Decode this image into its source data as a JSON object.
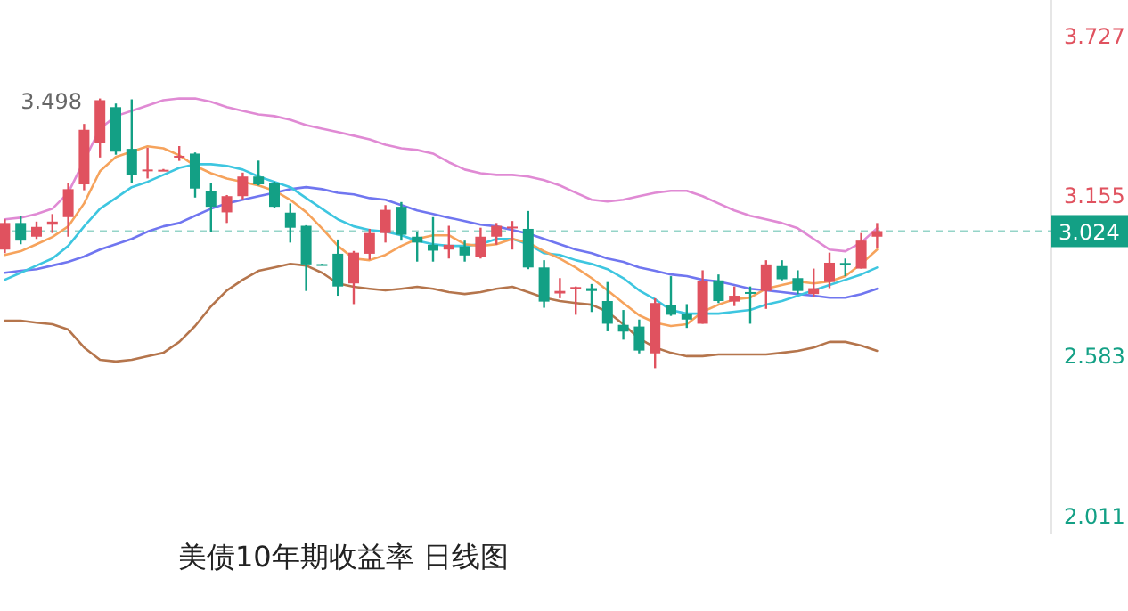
{
  "chart_data": {
    "type": "candlestick",
    "title": "美债10年期收益率 日线图",
    "categories": [
      null,
      null,
      null,
      null,
      null,
      null,
      null,
      null,
      null,
      null,
      null,
      null,
      null,
      null,
      null,
      null,
      null,
      null,
      null,
      null,
      null,
      null,
      null,
      null,
      null,
      null,
      null,
      null,
      null,
      null,
      null,
      null,
      null,
      null,
      null,
      null,
      null,
      null,
      null,
      null,
      null,
      null,
      null,
      null,
      null,
      null,
      null,
      null,
      null,
      null,
      null,
      null,
      null,
      null,
      null,
      null
    ],
    "ohlc": [
      [
        2.958,
        3.066,
        2.945,
        3.053
      ],
      [
        3.053,
        3.079,
        2.977,
        2.99
      ],
      [
        3.004,
        3.058,
        2.996,
        3.039
      ],
      [
        3.047,
        3.085,
        3.017,
        3.058
      ],
      [
        3.074,
        3.195,
        3.004,
        3.174
      ],
      [
        3.191,
        3.407,
        3.17,
        3.386
      ],
      [
        3.339,
        3.498,
        3.287,
        3.492
      ],
      [
        3.467,
        3.48,
        3.297,
        3.308
      ],
      [
        3.318,
        3.495,
        3.195,
        3.223
      ],
      [
        3.24,
        3.322,
        3.212,
        3.244
      ],
      [
        3.243,
        3.246,
        3.24,
        3.243
      ],
      [
        3.289,
        3.328,
        3.275,
        3.293
      ],
      [
        3.301,
        3.305,
        3.144,
        3.176
      ],
      [
        3.166,
        3.195,
        3.022,
        3.111
      ],
      [
        3.091,
        3.153,
        3.053,
        3.149
      ],
      [
        3.149,
        3.233,
        3.138,
        3.219
      ],
      [
        3.219,
        3.276,
        3.187,
        3.191
      ],
      [
        3.195,
        3.201,
        3.106,
        3.111
      ],
      [
        3.09,
        3.123,
        2.983,
        3.036
      ],
      [
        3.043,
        3.045,
        2.81,
        2.905
      ],
      [
        2.906,
        2.907,
        2.903,
        2.904
      ],
      [
        2.943,
        2.994,
        2.793,
        2.826
      ],
      [
        2.837,
        2.953,
        2.763,
        2.947
      ],
      [
        2.943,
        3.032,
        2.922,
        3.017
      ],
      [
        3.017,
        3.117,
        2.983,
        3.1
      ],
      [
        3.111,
        3.128,
        2.99,
        3.011
      ],
      [
        3.004,
        3.022,
        2.915,
        2.983
      ],
      [
        2.975,
        3.074,
        2.915,
        2.954
      ],
      [
        2.958,
        3.043,
        2.926,
        2.975
      ],
      [
        2.969,
        2.99,
        2.915,
        2.937
      ],
      [
        2.932,
        3.036,
        2.926,
        3.004
      ],
      [
        3.004,
        3.053,
        2.975,
        3.043
      ],
      [
        3.034,
        3.06,
        2.958,
        3.04
      ],
      [
        3.032,
        3.096,
        2.888,
        2.894
      ],
      [
        2.894,
        2.92,
        2.75,
        2.772
      ],
      [
        2.801,
        2.856,
        2.784,
        2.81
      ],
      [
        2.821,
        2.826,
        2.725,
        2.824
      ],
      [
        2.82,
        2.835,
        2.735,
        2.81
      ],
      [
        2.774,
        2.842,
        2.666,
        2.693
      ],
      [
        2.689,
        2.742,
        2.636,
        2.665
      ],
      [
        2.683,
        2.708,
        2.587,
        2.597
      ],
      [
        2.587,
        2.784,
        2.534,
        2.767
      ],
      [
        2.761,
        2.863,
        2.721,
        2.725
      ],
      [
        2.729,
        2.763,
        2.678,
        2.708
      ],
      [
        2.693,
        2.884,
        2.693,
        2.845
      ],
      [
        2.848,
        2.869,
        2.767,
        2.774
      ],
      [
        2.772,
        2.826,
        2.756,
        2.793
      ],
      [
        2.806,
        2.826,
        2.693,
        2.803
      ],
      [
        2.81,
        2.92,
        2.746,
        2.905
      ],
      [
        2.899,
        2.92,
        2.848,
        2.852
      ],
      [
        2.856,
        2.884,
        2.799,
        2.81
      ],
      [
        2.799,
        2.89,
        2.788,
        2.82
      ],
      [
        2.842,
        2.947,
        2.82,
        2.911
      ],
      [
        2.91,
        2.926,
        2.863,
        2.906
      ],
      [
        2.89,
        3.017,
        2.89,
        2.99
      ],
      [
        3.004,
        3.053,
        2.962,
        3.024
      ]
    ],
    "series": [
      {
        "type": "line",
        "color": "#e08ad4",
        "values": [
          3.066,
          3.072,
          3.085,
          3.104,
          3.161,
          3.276,
          3.39,
          3.435,
          3.454,
          3.473,
          3.492,
          3.498,
          3.498,
          3.486,
          3.467,
          3.454,
          3.441,
          3.435,
          3.422,
          3.403,
          3.39,
          3.378,
          3.365,
          3.352,
          3.333,
          3.32,
          3.314,
          3.301,
          3.27,
          3.244,
          3.231,
          3.225,
          3.225,
          3.219,
          3.206,
          3.187,
          3.161,
          3.136,
          3.13,
          3.136,
          3.149,
          3.161,
          3.168,
          3.168,
          3.149,
          3.123,
          3.098,
          3.079,
          3.066,
          3.053,
          3.034,
          2.996,
          2.958,
          2.952,
          2.983,
          3.034
        ]
      },
      {
        "type": "line",
        "color": "#b5754c",
        "values": [
          2.704,
          2.704,
          2.697,
          2.691,
          2.672,
          2.608,
          2.564,
          2.558,
          2.564,
          2.577,
          2.589,
          2.628,
          2.685,
          2.755,
          2.812,
          2.85,
          2.882,
          2.894,
          2.907,
          2.901,
          2.875,
          2.837,
          2.825,
          2.818,
          2.812,
          2.818,
          2.825,
          2.818,
          2.806,
          2.799,
          2.806,
          2.818,
          2.825,
          2.806,
          2.786,
          2.774,
          2.767,
          2.761,
          2.736,
          2.691,
          2.64,
          2.608,
          2.589,
          2.577,
          2.577,
          2.583,
          2.583,
          2.583,
          2.583,
          2.589,
          2.596,
          2.608,
          2.628,
          2.628,
          2.615,
          2.596
        ]
      },
      {
        "type": "line",
        "color": "#7076f0",
        "values": [
          2.875,
          2.882,
          2.888,
          2.901,
          2.914,
          2.933,
          2.958,
          2.977,
          2.996,
          3.022,
          3.041,
          3.053,
          3.079,
          3.104,
          3.123,
          3.136,
          3.149,
          3.161,
          3.174,
          3.181,
          3.174,
          3.161,
          3.155,
          3.142,
          3.136,
          3.117,
          3.098,
          3.085,
          3.072,
          3.06,
          3.047,
          3.041,
          3.028,
          3.015,
          2.996,
          2.977,
          2.958,
          2.945,
          2.926,
          2.914,
          2.894,
          2.882,
          2.869,
          2.863,
          2.85,
          2.844,
          2.831,
          2.818,
          2.812,
          2.806,
          2.799,
          2.793,
          2.786,
          2.786,
          2.799,
          2.818
        ]
      },
      {
        "type": "line",
        "color": "#3ec6e0",
        "values": [
          2.85,
          2.875,
          2.901,
          2.926,
          2.971,
          3.041,
          3.104,
          3.142,
          3.181,
          3.2,
          3.225,
          3.25,
          3.263,
          3.263,
          3.257,
          3.244,
          3.219,
          3.2,
          3.181,
          3.142,
          3.104,
          3.066,
          3.041,
          3.028,
          3.022,
          3.009,
          2.99,
          2.977,
          2.971,
          2.971,
          2.977,
          2.996,
          2.996,
          2.977,
          2.945,
          2.939,
          2.92,
          2.907,
          2.888,
          2.856,
          2.812,
          2.78,
          2.742,
          2.729,
          2.729,
          2.729,
          2.736,
          2.742,
          2.761,
          2.774,
          2.793,
          2.812,
          2.831,
          2.85,
          2.869,
          2.894
        ]
      },
      {
        "type": "line",
        "color": "#f6a35c",
        "values": [
          2.939,
          2.952,
          2.977,
          3.003,
          3.041,
          3.123,
          3.238,
          3.289,
          3.308,
          3.327,
          3.32,
          3.295,
          3.257,
          3.231,
          3.212,
          3.2,
          3.187,
          3.168,
          3.136,
          3.092,
          3.034,
          2.971,
          2.926,
          2.92,
          2.939,
          2.971,
          2.996,
          3.009,
          3.009,
          2.977,
          2.971,
          2.977,
          2.996,
          2.983,
          2.952,
          2.926,
          2.894,
          2.856,
          2.812,
          2.767,
          2.723,
          2.697,
          2.685,
          2.691,
          2.736,
          2.761,
          2.78,
          2.786,
          2.818,
          2.831,
          2.844,
          2.837,
          2.844,
          2.863,
          2.907,
          2.958
        ]
      }
    ],
    "ylim": [
      1.94,
      3.85
    ],
    "yticks": [
      3.727,
      3.155,
      2.583,
      2.011
    ],
    "ref_lines": [
      {
        "axis": "y",
        "value": 3.024,
        "label": "3.024",
        "color": "#13a085",
        "line_style": "dashed"
      }
    ],
    "annotations": [
      "3.498"
    ]
  }
}
